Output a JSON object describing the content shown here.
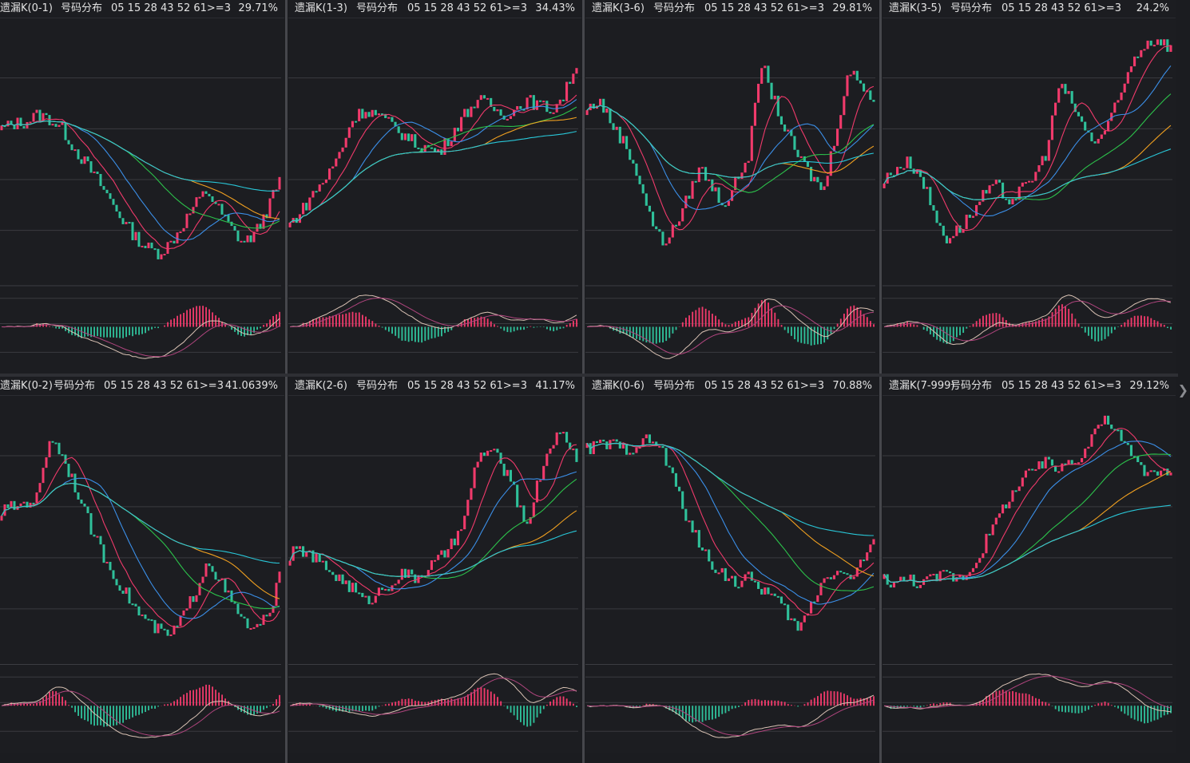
{
  "colors": {
    "background": "#1c1d21",
    "grid": "#3a3b40",
    "up": "#f03a6b",
    "down": "#2fc09a",
    "ma": [
      "#e8e8e8",
      "#f03a6b",
      "#3b8fe8",
      "#2cc24b",
      "#f0a020",
      "#29c7d8"
    ],
    "dif": "#d9c2b4",
    "dea": "#b0457e"
  },
  "icons": {
    "expand": "chevron-right-icon"
  },
  "panels": [
    {
      "name": "遗漏K(0-1)",
      "subtitle": "号码分布",
      "numbers": "05 15 28 43 52 61>=3",
      "pct": "29.71%"
    },
    {
      "name": "遗漏K(1-3)",
      "subtitle": "号码分布",
      "numbers": "05 15 28 43 52 61>=3",
      "pct": "34.43%"
    },
    {
      "name": "遗漏K(3-6)",
      "subtitle": "号码分布",
      "numbers": "05 15 28 43 52 61>=3",
      "pct": "29.81%"
    },
    {
      "name": "遗漏K(3-5)",
      "subtitle": "号码分布",
      "numbers": "05 15 28 43 52 61>=3",
      "pct": "24.2%"
    },
    {
      "name": "遗漏K(0-2)",
      "subtitle": "号码分布",
      "numbers": "05 15 28 43 52 61>=3",
      "pct": "41.0639%"
    },
    {
      "name": "遗漏K(2-6)",
      "subtitle": "号码分布",
      "numbers": "05 15 28 43 52 61>=3",
      "pct": "41.17%"
    },
    {
      "name": "遗漏K(0-6)",
      "subtitle": "号码分布",
      "numbers": "05 15 28 43 52 61>=3",
      "pct": "70.88%"
    },
    {
      "name": "遗漏K(7-999)",
      "subtitle": "号码分布",
      "numbers": "05 15 28 43 52 61>=3",
      "pct": "29.12%"
    }
  ],
  "chart_data": [
    {
      "type": "candlestick",
      "title": "遗漏K(0-1)",
      "close_trend": [
        60,
        62,
        63,
        66,
        64,
        60,
        52,
        45,
        38,
        30,
        22,
        15,
        10,
        8,
        12,
        20,
        28,
        34,
        26,
        18,
        12,
        16,
        26,
        38
      ],
      "indicator": "MACD"
    },
    {
      "type": "candlestick",
      "title": "遗漏K(1-3)",
      "close_trend": [
        20,
        26,
        34,
        40,
        50,
        64,
        68,
        66,
        62,
        58,
        54,
        52,
        50,
        58,
        66,
        72,
        70,
        66,
        68,
        72,
        70,
        68,
        74,
        88
      ],
      "indicator": "MACD"
    },
    {
      "type": "candlestick",
      "title": "遗漏K(3-6)",
      "close_trend": [
        68,
        72,
        62,
        54,
        42,
        24,
        12,
        18,
        30,
        44,
        36,
        28,
        38,
        50,
        88,
        72,
        58,
        48,
        40,
        34,
        60,
        84,
        80,
        72
      ],
      "indicator": "MACD"
    },
    {
      "type": "candlestick",
      "title": "遗漏K(3-5)",
      "close_trend": [
        38,
        44,
        46,
        40,
        24,
        14,
        18,
        24,
        32,
        36,
        30,
        34,
        40,
        50,
        78,
        72,
        60,
        54,
        62,
        74,
        90,
        96,
        98,
        94
      ],
      "indicator": "MACD"
    },
    {
      "type": "candlestick",
      "title": "遗漏K(0-2)",
      "close_trend": [
        58,
        60,
        62,
        64,
        90,
        82,
        70,
        56,
        44,
        34,
        26,
        18,
        12,
        8,
        6,
        14,
        24,
        38,
        30,
        20,
        12,
        8,
        14,
        30
      ],
      "indicator": "MACD"
    },
    {
      "type": "candlestick",
      "title": "遗漏K(2-6)",
      "close_trend": [
        40,
        42,
        38,
        34,
        30,
        26,
        20,
        24,
        28,
        32,
        30,
        34,
        38,
        44,
        54,
        80,
        84,
        78,
        66,
        52,
        72,
        88,
        90,
        80
      ],
      "indicator": "MACD"
    },
    {
      "type": "candlestick",
      "title": "遗漏K(0-6)",
      "close_trend": [
        84,
        86,
        86,
        84,
        86,
        88,
        84,
        70,
        56,
        44,
        36,
        32,
        28,
        30,
        26,
        22,
        16,
        8,
        20,
        30,
        34,
        30,
        36,
        46
      ],
      "indicator": "MACD"
    },
    {
      "type": "candlestick",
      "title": "遗漏K(7-999)",
      "close_trend": [
        30,
        28,
        30,
        28,
        30,
        32,
        30,
        34,
        44,
        54,
        64,
        70,
        76,
        78,
        76,
        80,
        82,
        94,
        96,
        88,
        80,
        74,
        76,
        72
      ],
      "indicator": "MACD"
    }
  ]
}
